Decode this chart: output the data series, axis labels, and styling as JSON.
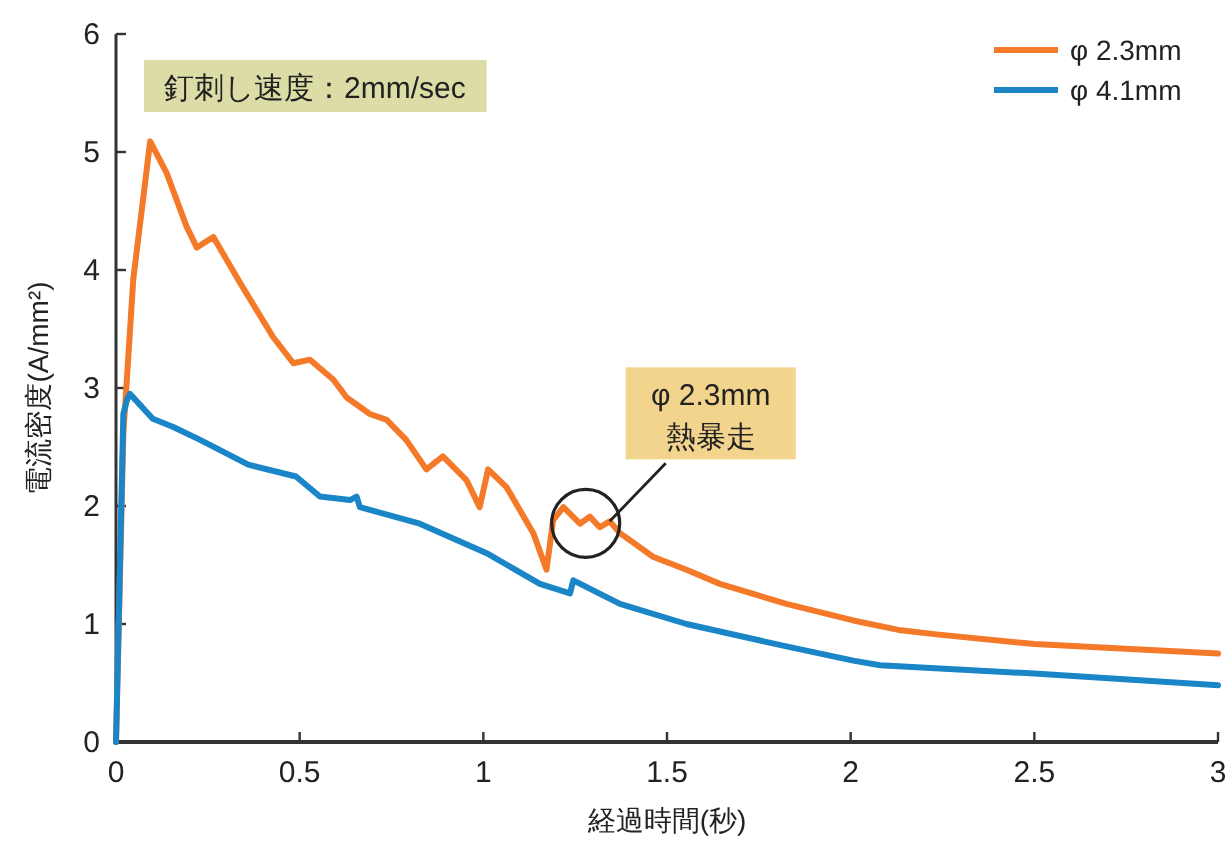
{
  "chart_data": {
    "type": "line",
    "xlabel": "経過時間(秒)",
    "ylabel": "電流密度(A/mm²)",
    "xlim": [
      0,
      3
    ],
    "ylim": [
      0,
      6
    ],
    "xticks": [
      0,
      0.5,
      1,
      1.5,
      2,
      2.5,
      3
    ],
    "yticks": [
      0,
      1,
      2,
      3,
      4,
      5,
      6
    ],
    "grid": false,
    "legend": "top right",
    "marker": "none",
    "line_style": "solid",
    "annotations": [
      "釘刺し速度：2mm/sec",
      {
        "text": "φ 2.3mm\n熱暴走",
        "x": 1.344,
        "y": 1.87
      }
    ],
    "series": [
      {
        "name": "φ 2.3mm",
        "color": "#f47a2a",
        "x": [
          0,
          0.02,
          0.047,
          0.093,
          0.138,
          0.192,
          0.22,
          0.265,
          0.338,
          0.428,
          0.483,
          0.528,
          0.592,
          0.628,
          0.691,
          0.737,
          0.79,
          0.845,
          0.89,
          0.954,
          0.99,
          1.013,
          1.063,
          1.136,
          1.172,
          1.19,
          1.218,
          1.263,
          1.29,
          1.317,
          1.344,
          1.372,
          1.462,
          1.553,
          1.644,
          1.825,
          2.007,
          2.13,
          2.24,
          2.5,
          3.0
        ],
        "values": [
          0,
          2.61,
          3.92,
          5.09,
          4.82,
          4.37,
          4.19,
          4.28,
          3.89,
          3.43,
          3.21,
          3.24,
          3.07,
          2.92,
          2.78,
          2.73,
          2.56,
          2.31,
          2.42,
          2.22,
          1.99,
          2.31,
          2.16,
          1.77,
          1.46,
          1.88,
          1.99,
          1.85,
          1.91,
          1.82,
          1.87,
          1.77,
          1.57,
          1.46,
          1.34,
          1.17,
          1.03,
          0.95,
          0.91,
          0.83,
          0.75
        ]
      },
      {
        "name": "φ 4.1mm",
        "color": "#1a86c8",
        "x": [
          0,
          0.02,
          0.03,
          0.038,
          0.1,
          0.156,
          0.229,
          0.36,
          0.49,
          0.555,
          0.637,
          0.655,
          0.664,
          0.827,
          1.009,
          1.154,
          1.236,
          1.245,
          1.372,
          1.553,
          1.825,
          2.007,
          2.08,
          2.5,
          3.0
        ],
        "values": [
          0,
          2.78,
          2.9,
          2.95,
          2.74,
          2.67,
          2.56,
          2.35,
          2.25,
          2.08,
          2.05,
          2.08,
          1.99,
          1.85,
          1.6,
          1.34,
          1.26,
          1.37,
          1.17,
          1.0,
          0.81,
          0.69,
          0.65,
          0.58,
          0.48
        ]
      }
    ]
  }
}
